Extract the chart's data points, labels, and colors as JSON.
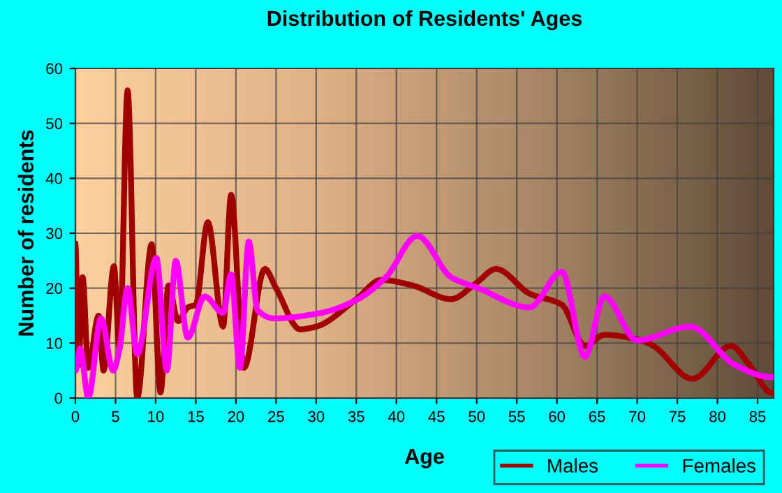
{
  "chart_data": {
    "type": "line",
    "title": "Distribution of Residents' Ages",
    "xlabel": "Age",
    "ylabel": "Number of residents",
    "xlim": [
      0,
      87
    ],
    "xticks": [
      0,
      5,
      10,
      15,
      20,
      25,
      30,
      35,
      40,
      45,
      50,
      55,
      60,
      65,
      70,
      75,
      80,
      85
    ],
    "ylim": [
      0,
      60
    ],
    "yticks": [
      0,
      10,
      20,
      30,
      40,
      50,
      60
    ],
    "grid": true,
    "legend": "bottom right",
    "marker": "none",
    "line_style": "solid",
    "series": [
      {
        "name": "Males",
        "color": "#a00000",
        "x": [
          0,
          0.4,
          0.9,
          1.6,
          2.9,
          3.5,
          4.8,
          5.5,
          6.5,
          7.7,
          9.5,
          10.6,
          11.6,
          12.8,
          14,
          15,
          16.5,
          18.4,
          19.4,
          21,
          23.6,
          25,
          28,
          30,
          35,
          38.1,
          42,
          46.8,
          50,
          52.4,
          56.6,
          60.6,
          63.5,
          65.9,
          70.5,
          72,
          76.9,
          81.7,
          84,
          86.7
        ],
        "values": [
          28,
          6,
          22,
          5.5,
          15,
          5,
          24,
          9,
          56,
          0,
          28,
          1,
          20.5,
          14,
          16.5,
          17,
          32,
          13,
          37,
          5.5,
          23.5,
          20,
          12.5,
          13,
          18,
          21.5,
          20.5,
          18,
          21,
          23.5,
          19,
          17,
          9.5,
          11.5,
          10.5,
          9.5,
          3.5,
          9.5,
          6,
          1
        ]
      },
      {
        "name": "Females",
        "color": "#ff00ff",
        "x": [
          0,
          0.6,
          1.6,
          3.2,
          4.7,
          5.5,
          6.5,
          7.7,
          10.1,
          11.4,
          12.5,
          14,
          16.1,
          18.4,
          19.4,
          20.5,
          21.6,
          22.7,
          24.8,
          30.6,
          35.2,
          38.7,
          42.6,
          46.8,
          50.2,
          56.6,
          60.6,
          63.5,
          65.9,
          70,
          76.6,
          82.2,
          86.7
        ],
        "values": [
          5,
          9,
          0,
          14.5,
          5,
          9,
          20,
          8,
          25.5,
          5,
          25,
          11,
          18.5,
          15.5,
          22.5,
          5.5,
          28.5,
          16,
          14.5,
          15.5,
          18,
          22,
          29.5,
          22,
          20,
          16.5,
          23,
          7.5,
          18.5,
          10.5,
          13,
          6,
          3.8
        ]
      }
    ]
  }
}
